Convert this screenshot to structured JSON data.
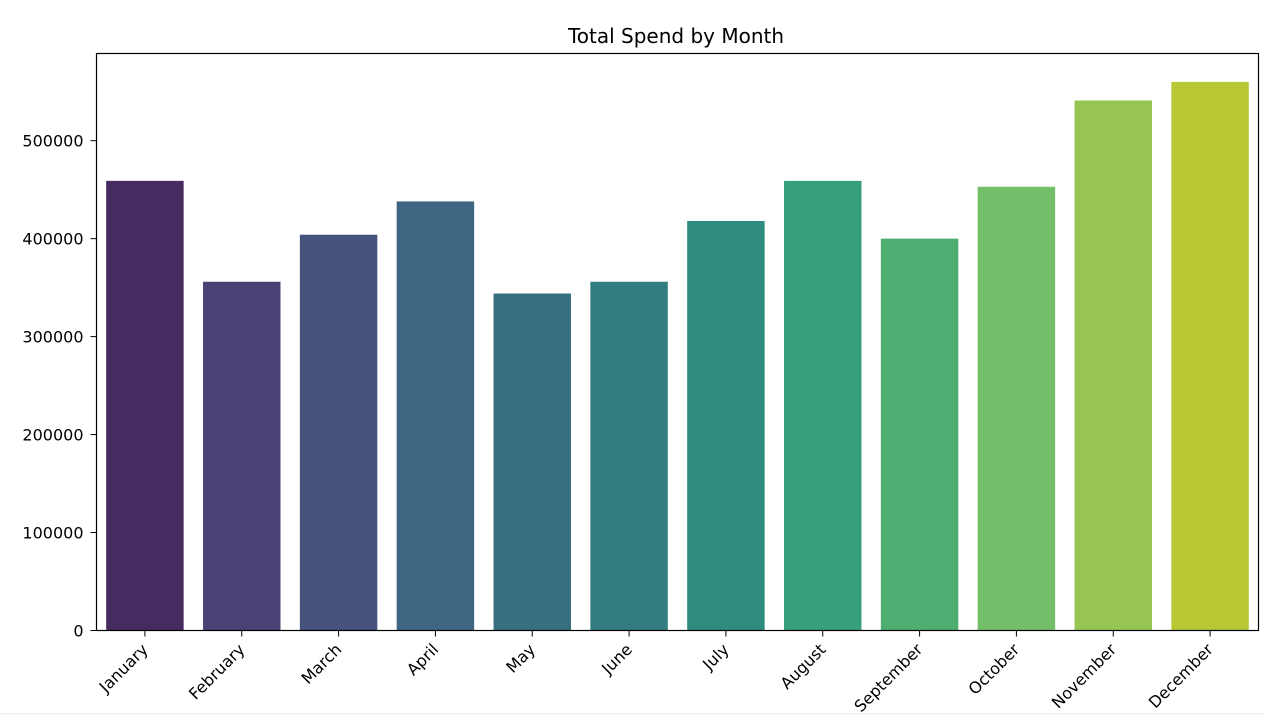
{
  "chart_data": {
    "type": "bar",
    "title": "Total Spend by Month",
    "xlabel": "",
    "ylabel": "",
    "categories": [
      "January",
      "February",
      "March",
      "April",
      "May",
      "June",
      "July",
      "August",
      "September",
      "October",
      "November",
      "December"
    ],
    "values": [
      459000,
      356000,
      404000,
      438000,
      344000,
      356000,
      418000,
      459000,
      400000,
      453000,
      541000,
      560000
    ],
    "ylim": [
      0,
      589000
    ],
    "yticks": [
      0,
      100000,
      200000,
      300000,
      400000,
      500000
    ],
    "ytick_labels": [
      "0",
      "100000",
      "200000",
      "300000",
      "400000",
      "500000"
    ],
    "grid": false,
    "legend": "none",
    "colors": [
      "#472a60",
      "#4a4175",
      "#45537d",
      "#3e6582",
      "#386f7f",
      "#327d7f",
      "#2e8b7e",
      "#379f7a",
      "#4eae72",
      "#73bf69",
      "#96c651",
      "#b7c834"
    ],
    "xtick_rotation": 45
  }
}
